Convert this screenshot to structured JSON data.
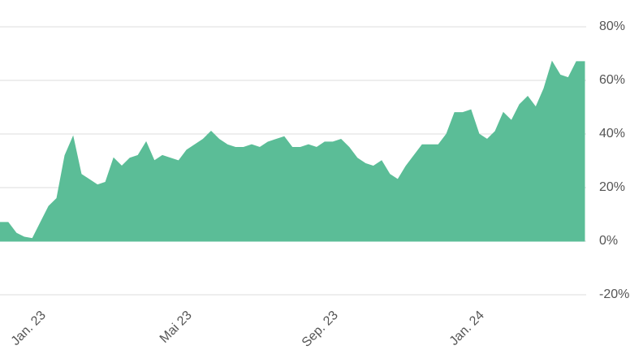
{
  "chart_data": {
    "type": "area",
    "color": "#5bbd97",
    "categories": [
      null,
      null,
      null,
      null,
      null,
      "Jan. 23",
      null,
      null,
      null,
      null,
      null,
      null,
      null,
      null,
      null,
      null,
      null,
      null,
      null,
      null,
      null,
      null,
      null,
      "Mai 23",
      null,
      null,
      null,
      null,
      null,
      null,
      null,
      null,
      null,
      null,
      null,
      null,
      null,
      null,
      null,
      null,
      null,
      "Sep. 23",
      null,
      null,
      null,
      null,
      null,
      null,
      null,
      null,
      null,
      null,
      null,
      null,
      null,
      null,
      null,
      null,
      null,
      "Jan. 24",
      null,
      null,
      null,
      null,
      null,
      null,
      null,
      null,
      null,
      null,
      null,
      null,
      null
    ],
    "values": [
      7,
      7,
      3,
      1.5,
      1,
      7,
      13,
      16,
      32,
      39,
      25,
      23,
      21,
      22,
      31,
      28,
      31,
      32,
      37,
      30,
      32,
      31,
      30,
      34,
      36,
      38,
      41,
      38,
      36,
      35,
      35,
      36,
      35,
      37,
      38,
      39,
      35,
      35,
      36,
      35,
      37,
      37,
      38,
      35,
      31,
      29,
      28,
      30,
      25,
      23,
      28,
      32,
      36,
      36,
      36,
      40,
      48,
      48,
      49,
      40,
      38,
      41,
      48,
      45,
      51,
      54,
      50,
      57,
      67,
      62,
      61,
      67,
      67
    ],
    "ylim": [
      -20,
      80
    ],
    "yticks": [
      {
        "value": -20,
        "label": "-20%"
      },
      {
        "value": 0,
        "label": "0%"
      },
      {
        "value": 20,
        "label": "20%"
      },
      {
        "value": 40,
        "label": "40%"
      },
      {
        "value": 60,
        "label": "60%"
      },
      {
        "value": 80,
        "label": "80%"
      }
    ],
    "grid": true
  }
}
